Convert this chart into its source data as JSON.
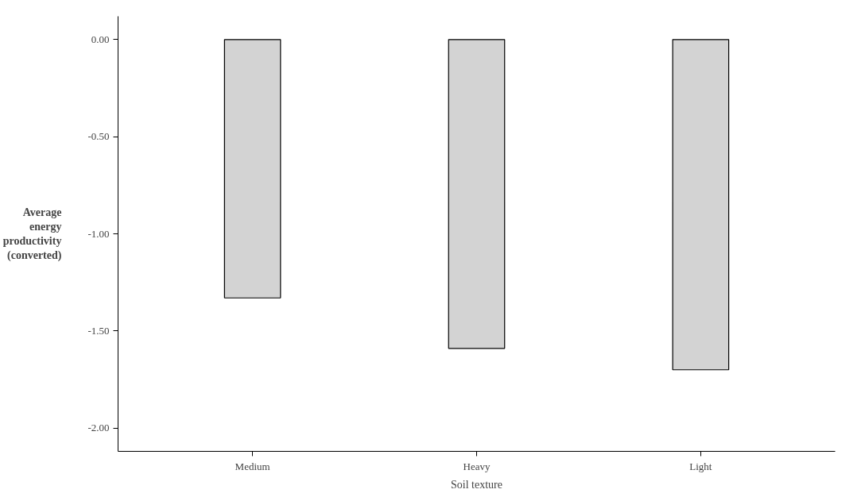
{
  "chart_data": {
    "type": "bar",
    "xlabel": "Soil texture",
    "ylabel": "Average energy productivity (converted)",
    "categories": [
      "Medium",
      "Heavy",
      "Light"
    ],
    "values": [
      -1.33,
      -1.59,
      -1.7
    ],
    "color": "#d3d3d3",
    "ylim": [
      -2.12,
      0.12
    ],
    "yticks": [
      {
        "value": 0,
        "label": "0.00"
      },
      {
        "value": -0.5,
        "label": "-0.50"
      },
      {
        "value": -1,
        "label": "-1.00"
      },
      {
        "value": -1.5,
        "label": "-1.50"
      },
      {
        "value": -2,
        "label": "-2.00"
      }
    ],
    "grid": false
  }
}
